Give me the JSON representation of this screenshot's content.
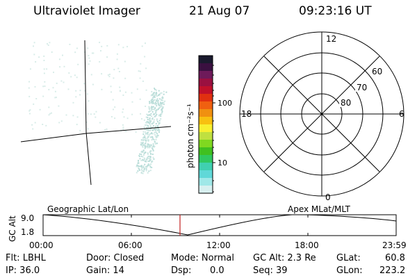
{
  "header": {
    "title": "Ultraviolet Imager",
    "date": "21 Aug 07",
    "time": "09:23:16 UT"
  },
  "colorbar": {
    "label": "photon cm⁻²s⁻¹",
    "ticks": [
      "100",
      "10"
    ],
    "colors": [
      "#1a1a2e",
      "#3a1040",
      "#6e1a5a",
      "#9a1040",
      "#c0102a",
      "#e03010",
      "#f06010",
      "#f09010",
      "#f8c010",
      "#f8f030",
      "#c0e040",
      "#80d820",
      "#40c020",
      "#30c860",
      "#40d0b0",
      "#60d8d8",
      "#a0e8e8",
      "#d8f0f0"
    ]
  },
  "polar": {
    "mlt_labels": [
      "12",
      "18",
      "6",
      "0"
    ],
    "lat_labels": [
      "60",
      "70",
      "80"
    ]
  },
  "timeline": {
    "left_label": "Geographic Lat/Lon",
    "right_label": "Apex MLat/MLT",
    "axis_title": "GC Alt",
    "y_ticks": [
      "9.0",
      "1.8"
    ],
    "x_ticks": [
      "00:00",
      "06:00",
      "12:00",
      "18:00",
      "23:59"
    ]
  },
  "footer": {
    "flt": "Flt: LBHL",
    "ip": "IP: 36.0",
    "door": "Door: Closed",
    "gain": "Gain: 14",
    "mode": "Mode: Normal",
    "dsp_label": "Dsp:",
    "dsp_value": "0.0",
    "gcalt": "GC Alt: 2.3 Re",
    "seq": "Seq: 39",
    "glat_label": "GLat:",
    "glat_value": "60.8",
    "glon_label": "GLon:",
    "glon_value": "223.2"
  }
}
